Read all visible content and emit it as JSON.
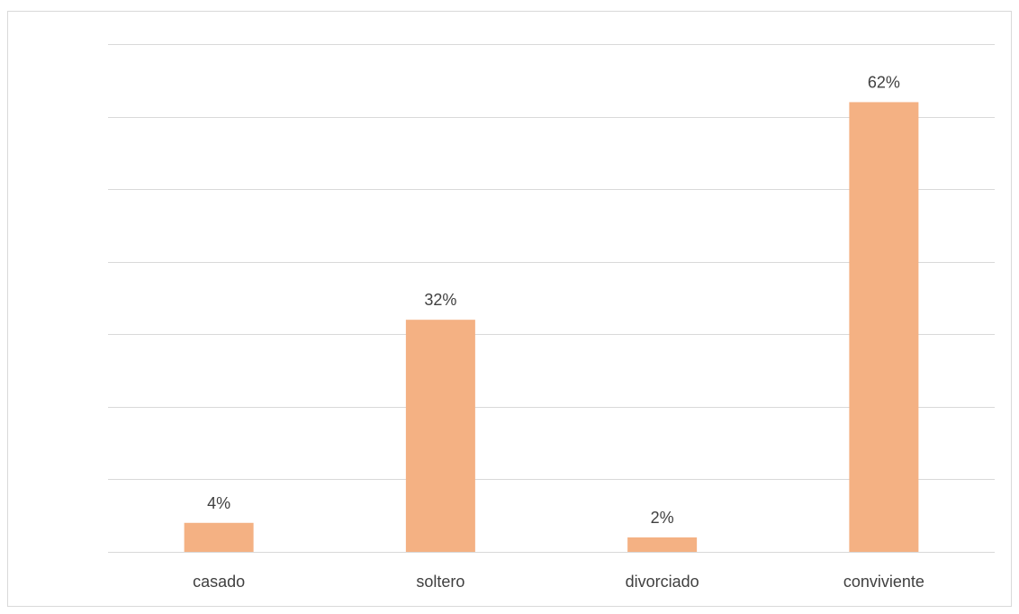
{
  "chart_data": {
    "type": "bar",
    "categories": [
      "casado",
      "soltero",
      "divorciado",
      "conviviente"
    ],
    "values": [
      4,
      32,
      2,
      62
    ],
    "data_labels": [
      "4%",
      "32%",
      "2%",
      "62%"
    ],
    "title": "",
    "xlabel": "",
    "ylabel": "",
    "ylim": [
      0,
      70
    ],
    "y_gridline_step": 10,
    "y_tick_labels_shown": false,
    "grid": true,
    "legend": "none",
    "bar_color": "#F4B183",
    "gridline_color": "#d9d9d9",
    "text_color": "#404040"
  }
}
